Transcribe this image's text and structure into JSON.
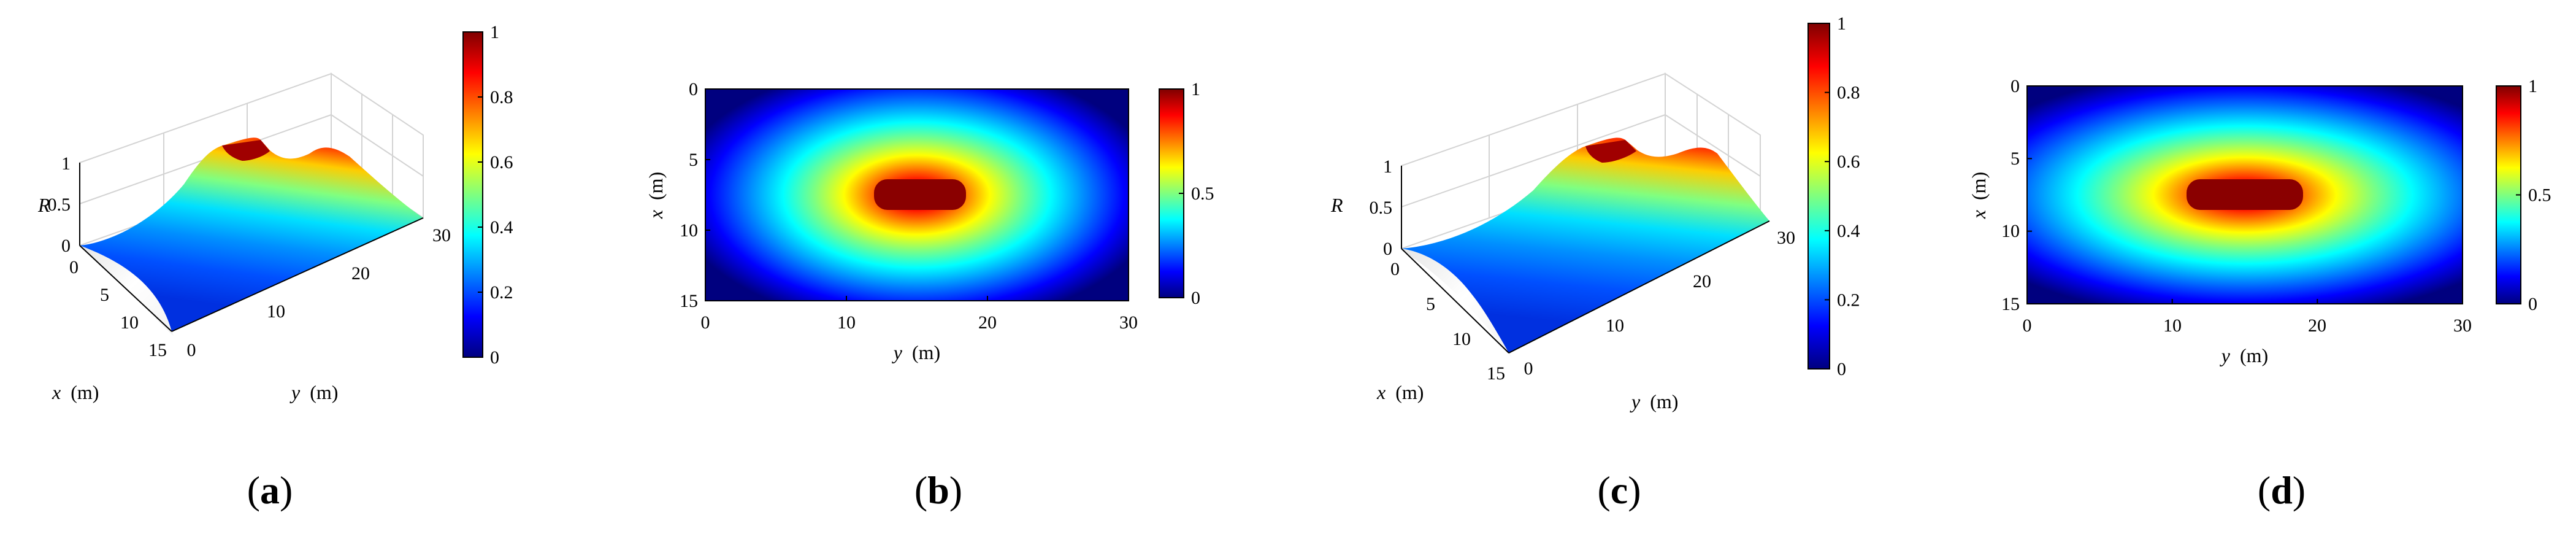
{
  "colors": {
    "jet": [
      "#00007f",
      "#0000ff",
      "#007fff",
      "#00ffff",
      "#7fff7f",
      "#ffff00",
      "#ff7f00",
      "#ff0000",
      "#7f0000"
    ]
  },
  "chart_data": [
    {
      "id": "a",
      "panel_label": "a",
      "type": "surface3d",
      "xlabel": "x",
      "xunit": "(m)",
      "ylabel": "y",
      "yunit": "(m)",
      "zlabel": "R",
      "x_ticks": [
        "0",
        "5",
        "10",
        "15"
      ],
      "y_ticks": [
        "0",
        "10",
        "20",
        "30"
      ],
      "z_ticks": [
        "0",
        "0.5",
        "1"
      ],
      "xlim": [
        0,
        15
      ],
      "ylim": [
        0,
        30
      ],
      "zlim": [
        0,
        1
      ],
      "peak": {
        "x": 7.5,
        "y_from": 12,
        "y_to": 18,
        "value": 1
      },
      "colorbar": {
        "ticks": [
          "0",
          "0.2",
          "0.4",
          "0.6",
          "0.8",
          "1"
        ],
        "range": [
          0,
          1
        ]
      },
      "grid": true
    },
    {
      "id": "b",
      "panel_label": "b",
      "type": "heatmap",
      "xlabel": "y",
      "xunit": "(m)",
      "ylabel": "x",
      "yunit": "(m)",
      "x_ticks": [
        "0",
        "10",
        "20",
        "30"
      ],
      "y_ticks": [
        "0",
        "5",
        "10",
        "15"
      ],
      "xlim": [
        0,
        30
      ],
      "ylim": [
        0,
        15
      ],
      "peak": {
        "x": 7.5,
        "y_from": 12,
        "y_to": 18,
        "value": 1
      },
      "colorbar": {
        "ticks": [
          "0",
          "0.5",
          "1"
        ],
        "range": [
          0,
          1
        ]
      }
    },
    {
      "id": "c",
      "panel_label": "c",
      "type": "surface3d",
      "xlabel": "x",
      "xunit": "(m)",
      "ylabel": "y",
      "yunit": "(m)",
      "zlabel": "R",
      "x_ticks": [
        "0",
        "5",
        "10",
        "15"
      ],
      "y_ticks": [
        "0",
        "10",
        "20",
        "30"
      ],
      "z_ticks": [
        "0",
        "0.5",
        "1"
      ],
      "xlim": [
        0,
        15
      ],
      "ylim": [
        0,
        30
      ],
      "zlim": [
        0,
        1
      ],
      "peak": {
        "x": 7.5,
        "y_from": 11,
        "y_to": 19,
        "value": 1
      },
      "colorbar": {
        "ticks": [
          "0",
          "0.2",
          "0.4",
          "0.6",
          "0.8",
          "1"
        ],
        "range": [
          0,
          1
        ]
      },
      "grid": true
    },
    {
      "id": "d",
      "panel_label": "d",
      "type": "heatmap",
      "xlabel": "y",
      "xunit": "(m)",
      "ylabel": "x",
      "yunit": "(m)",
      "x_ticks": [
        "0",
        "10",
        "20",
        "30"
      ],
      "y_ticks": [
        "0",
        "5",
        "10",
        "15"
      ],
      "xlim": [
        0,
        30
      ],
      "ylim": [
        0,
        15
      ],
      "peak": {
        "x": 7.5,
        "y_from": 11,
        "y_to": 19,
        "value": 1
      },
      "colorbar": {
        "ticks": [
          "0",
          "0.5",
          "1"
        ],
        "range": [
          0,
          1
        ]
      }
    }
  ]
}
